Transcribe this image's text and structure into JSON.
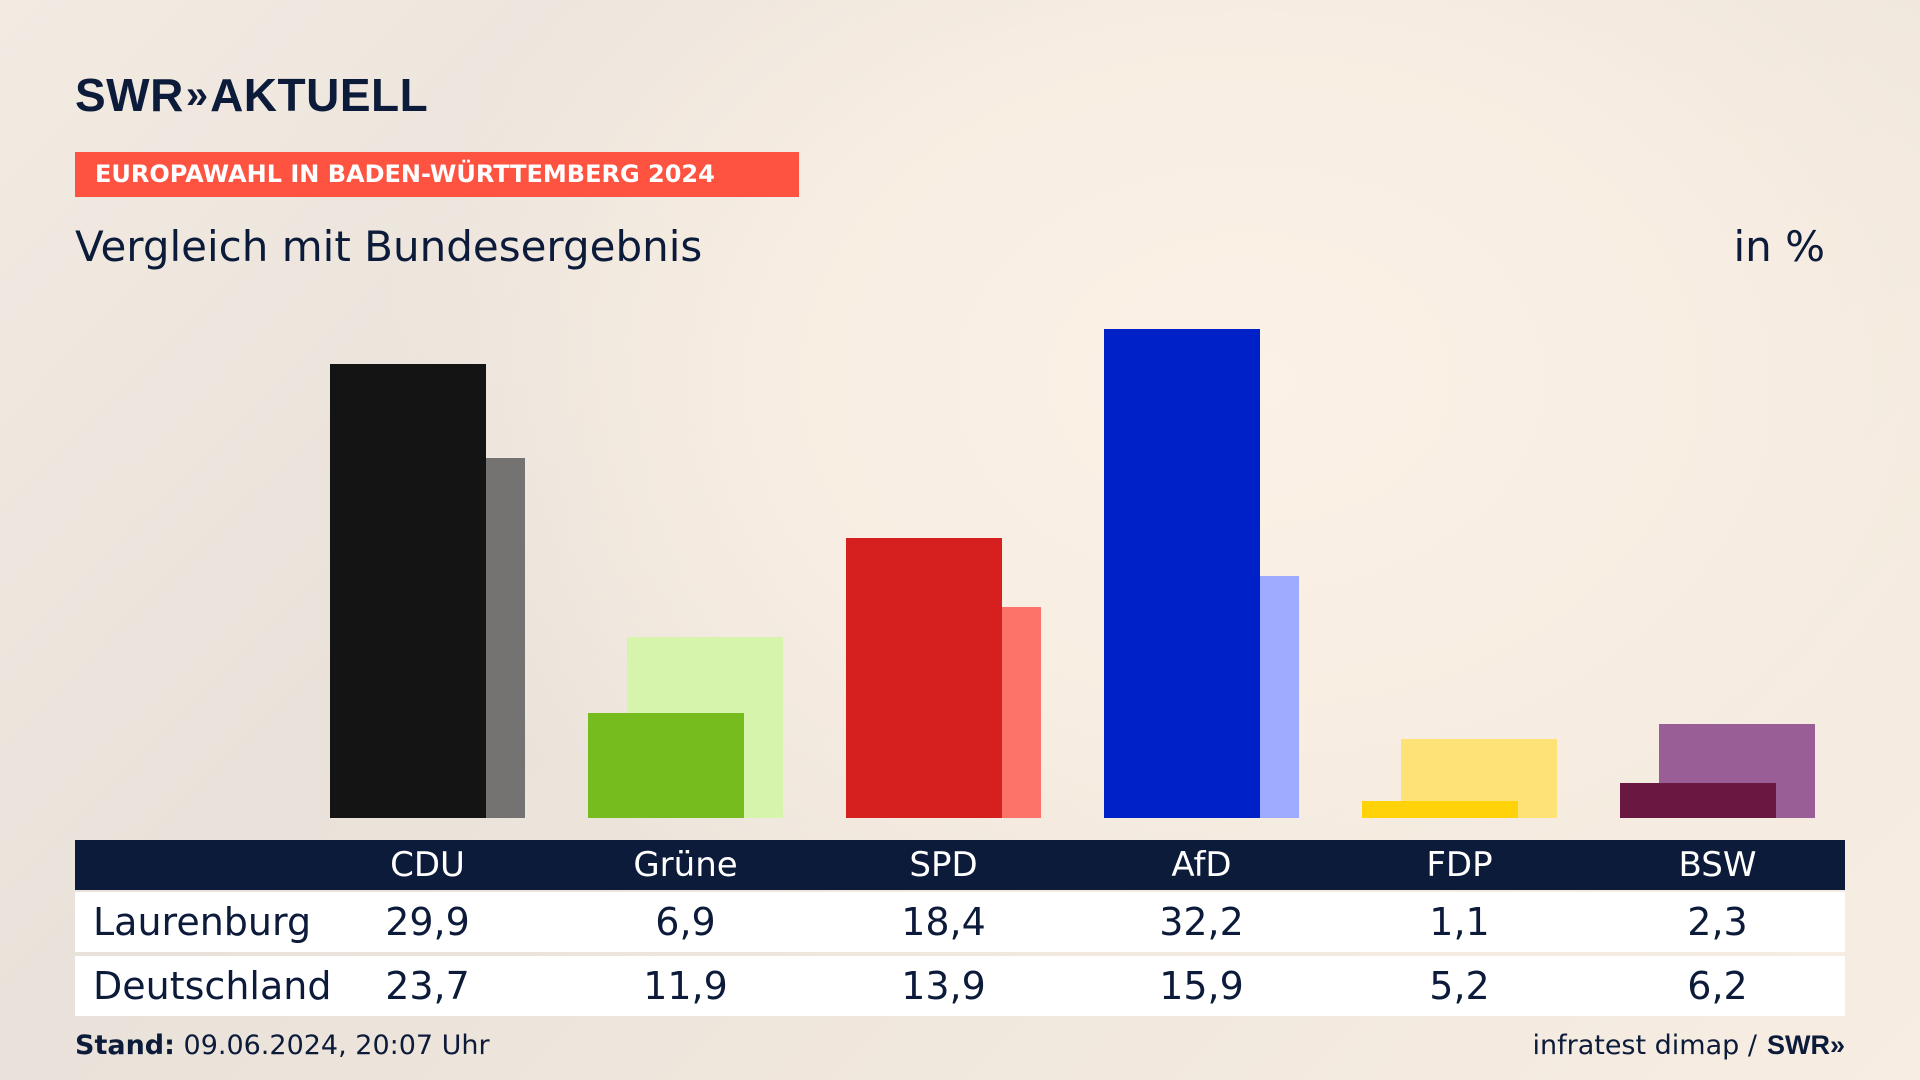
{
  "header": {
    "logo_text": "SWR",
    "logo_chevrons": "»",
    "logo_suffix": "AKTUELL",
    "kicker": "EUROPAWAHL IN BADEN-WÜRTTEMBERG 2024",
    "subtitle": "Vergleich mit Bundesergebnis",
    "unit": "in %"
  },
  "chart_data": {
    "type": "bar",
    "title": "Vergleich mit Bundesergebnis",
    "unit": "in %",
    "categories": [
      "CDU",
      "Grüne",
      "SPD",
      "AfD",
      "FDP",
      "BSW"
    ],
    "series": [
      {
        "name": "Laurenburg",
        "values": [
          29.9,
          6.9,
          18.4,
          32.2,
          1.1,
          2.3
        ],
        "labels": [
          "29,9",
          "6,9",
          "18,4",
          "32,2",
          "1,1",
          "2,3"
        ],
        "colors": [
          "#141414",
          "#77bc1f",
          "#d61f1f",
          "#0021c8",
          "#ffd20a",
          "#6a1842"
        ]
      },
      {
        "name": "Deutschland",
        "values": [
          23.7,
          11.9,
          13.9,
          15.9,
          5.2,
          6.2
        ],
        "labels": [
          "23,7",
          "11,9",
          "13,9",
          "15,9",
          "5,2",
          "6,2"
        ],
        "colors": [
          "#747372",
          "#d6f4ac",
          "#fe7369",
          "#9eacff",
          "#fde376",
          "#9a5e97"
        ]
      }
    ],
    "table_header_color": "#0d1b3a"
  },
  "footer": {
    "stand_label": "Stand:",
    "stand_value": "09.06.2024, 20:07 Uhr",
    "source": "infratest dimap /",
    "source_logo": "SWR»"
  }
}
